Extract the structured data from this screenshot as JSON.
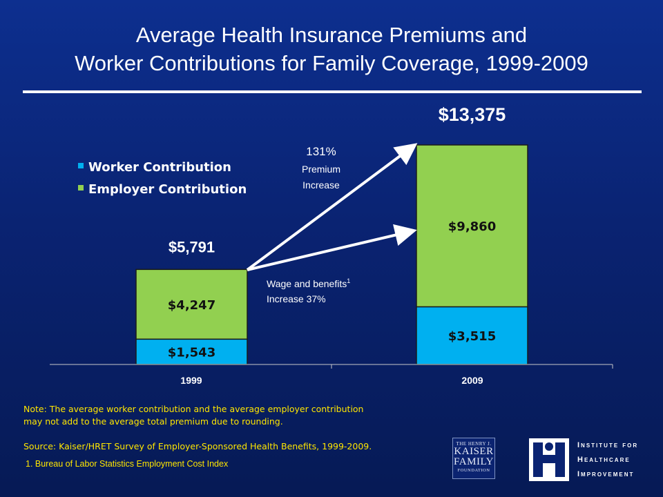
{
  "title_line1": "Average Health Insurance Premiums and",
  "title_line2": "Worker Contributions for Family Coverage, 1999-2009",
  "colors": {
    "worker": "#00b0f0",
    "employer": "#92d050",
    "arrow": "#ffffff",
    "note_text": "#ffe600"
  },
  "chart_data": {
    "type": "bar",
    "stacked": true,
    "categories": [
      "1999",
      "2009"
    ],
    "series": [
      {
        "name": "Worker Contribution",
        "color": "#00b0f0",
        "values": [
          1543,
          3515
        ],
        "labels": [
          "$1,543",
          "$3,515"
        ]
      },
      {
        "name": "Employer Contribution",
        "color": "#92d050",
        "values": [
          4247,
          9860
        ],
        "labels": [
          "$4,247",
          "$9,860"
        ]
      }
    ],
    "totals": [
      5791,
      13375
    ],
    "total_labels": [
      "$5,791",
      "$13,375"
    ],
    "ylim": [
      0,
      13375
    ],
    "legend_position": "top-left",
    "annotations": [
      {
        "id": "premium",
        "line1": "131%",
        "line2": "Premium",
        "line3": "Increase"
      },
      {
        "id": "wages",
        "line1": "Wage and benefits",
        "superscript": "1",
        "line2": "Increase 37%"
      }
    ]
  },
  "note": {
    "line1": "Note: The average worker contribution and the average employer contribution",
    "line2": "may not add to the average total premium due to rounding."
  },
  "source": "Source:  Kaiser/HRET Survey of Employer-Sponsored Health Benefits, 1999-2009.",
  "footnote": "1. Bureau of Labor Statistics Employment Cost Index",
  "logos": {
    "kff_line1": "THE HENRY J.",
    "kff_line2": "KAISER",
    "kff_line3": "FAMILY",
    "kff_line4": "FOUNDATION",
    "ihi_line1": "Institute for",
    "ihi_line2": "Healthcare",
    "ihi_line3": "Improvement"
  }
}
